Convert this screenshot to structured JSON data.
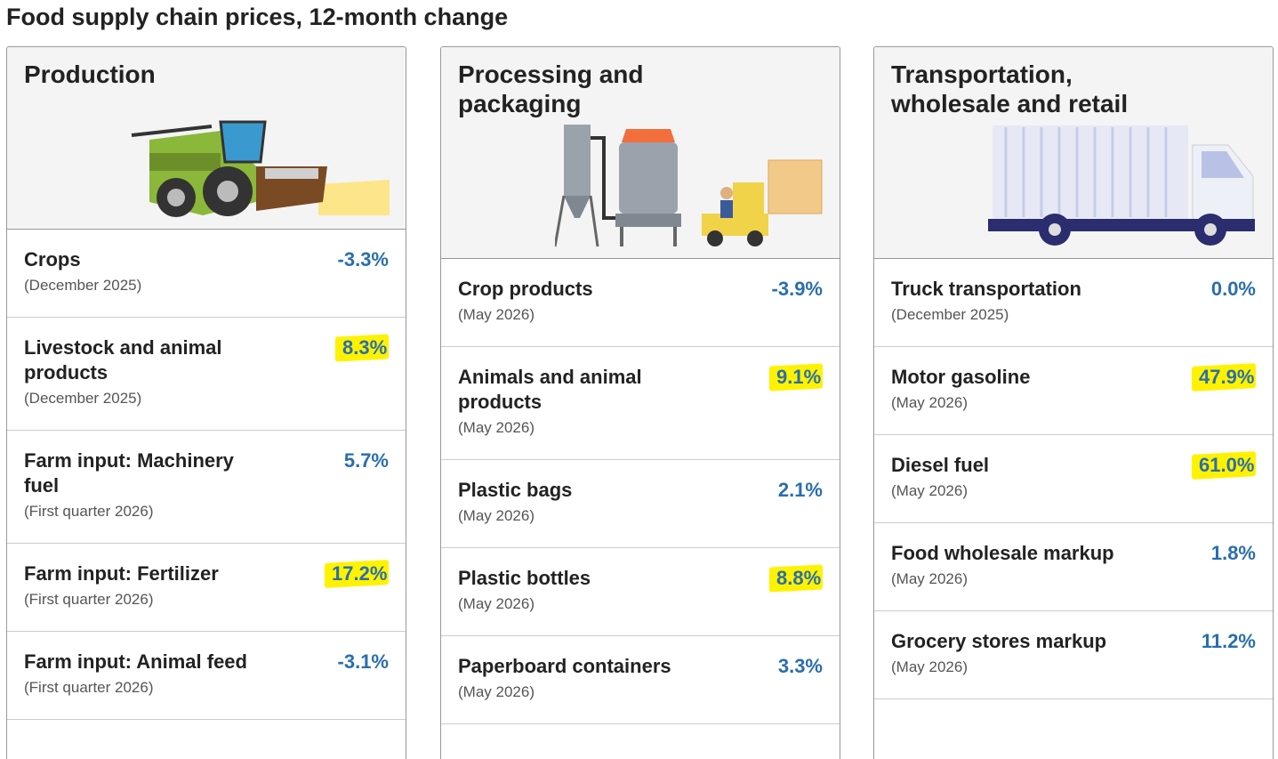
{
  "title": "Food supply chain prices, 12-month change",
  "columns": [
    {
      "heading": "Production",
      "items": [
        {
          "name": "Crops",
          "period": "(December 2025)",
          "value": "-3.3%",
          "highlight": false
        },
        {
          "name": "Livestock and animal products",
          "period": "(December 2025)",
          "value": "8.3%",
          "highlight": true
        },
        {
          "name": "Farm input: Machinery fuel",
          "period": "(First quarter 2026)",
          "value": "5.7%",
          "highlight": false
        },
        {
          "name": "Farm input: Fertilizer",
          "period": "(First quarter 2026)",
          "value": "17.2%",
          "highlight": true
        },
        {
          "name": "Farm input: Animal feed",
          "period": "(First quarter 2026)",
          "value": "-3.1%",
          "highlight": false
        }
      ]
    },
    {
      "heading": "Processing and packaging",
      "items": [
        {
          "name": "Crop products",
          "period": "(May 2026)",
          "value": "-3.9%",
          "highlight": false
        },
        {
          "name": "Animals and animal products",
          "period": "(May 2026)",
          "value": "9.1%",
          "highlight": true
        },
        {
          "name": "Plastic bags",
          "period": "(May 2026)",
          "value": "2.1%",
          "highlight": false
        },
        {
          "name": "Plastic bottles",
          "period": "(May 2026)",
          "value": "8.8%",
          "highlight": true
        },
        {
          "name": "Paperboard containers",
          "period": "(May 2026)",
          "value": "3.3%",
          "highlight": false
        }
      ]
    },
    {
      "heading": "Transportation, wholesale and retail",
      "items": [
        {
          "name": "Truck transportation",
          "period": "(December 2025)",
          "value": "0.0%",
          "highlight": false
        },
        {
          "name": "Motor gasoline",
          "period": "(May 2026)",
          "value": "47.9%",
          "highlight": true
        },
        {
          "name": "Diesel fuel",
          "period": "(May 2026)",
          "value": "61.0%",
          "highlight": true
        },
        {
          "name": "Food wholesale markup",
          "period": "(May 2026)",
          "value": "1.8%",
          "highlight": false
        },
        {
          "name": "Grocery stores markup",
          "period": "(May 2026)",
          "value": "11.2%",
          "highlight": false
        }
      ]
    }
  ]
}
